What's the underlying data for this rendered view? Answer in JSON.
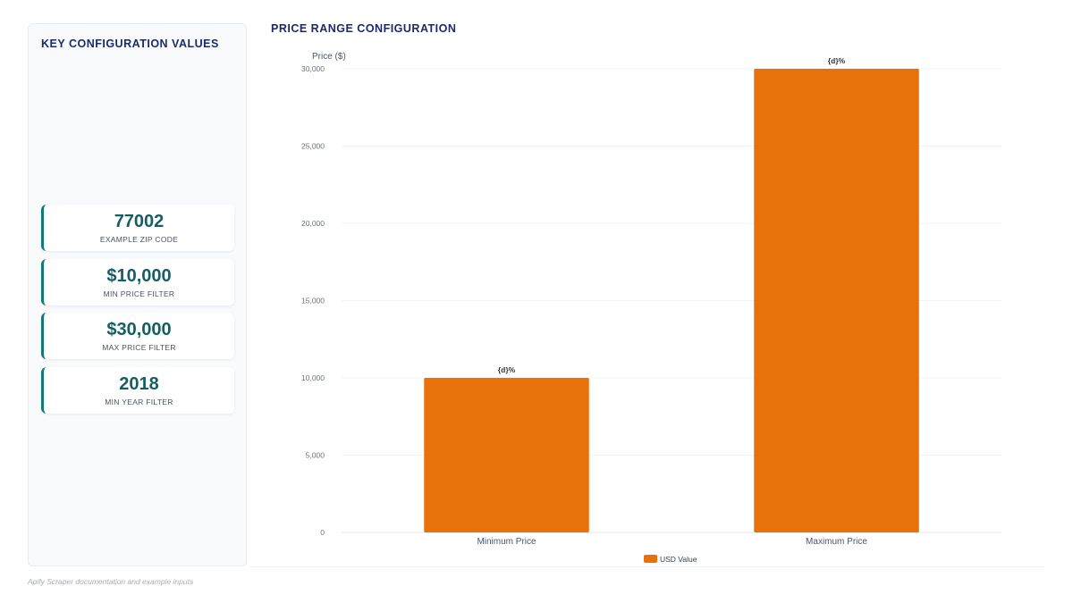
{
  "side_panel": {
    "title": "KEY CONFIGURATION VALUES",
    "cards": [
      {
        "value": "77002",
        "label": "EXAMPLE ZIP CODE"
      },
      {
        "value": "$10,000",
        "label": "MIN PRICE FILTER"
      },
      {
        "value": "$30,000",
        "label": "MAX PRICE FILTER"
      },
      {
        "value": "2018",
        "label": "MIN YEAR FILTER"
      }
    ]
  },
  "footer": "Apify Scraper documentation and example inputs",
  "colors": {
    "bar": "#e8710a",
    "accent": "#127a74",
    "title": "#1c2a6b"
  },
  "chart_data": {
    "type": "bar",
    "title": "PRICE RANGE CONFIGURATION",
    "ylabel": "Price ($)",
    "xlabel": "",
    "categories": [
      "Minimum Price",
      "Maximum Price"
    ],
    "series": [
      {
        "name": "USD Value",
        "values": [
          10000,
          30000
        ]
      }
    ],
    "data_labels": [
      "{d}%",
      "{d}%"
    ],
    "ylim": [
      0,
      30000
    ],
    "yticks": [
      0,
      5000,
      10000,
      15000,
      20000,
      25000,
      30000
    ],
    "ytick_labels": [
      "0",
      "5,000",
      "10,000",
      "15,000",
      "20,000",
      "25,000",
      "30,000"
    ],
    "grid": true,
    "legend": "bottom-center"
  }
}
